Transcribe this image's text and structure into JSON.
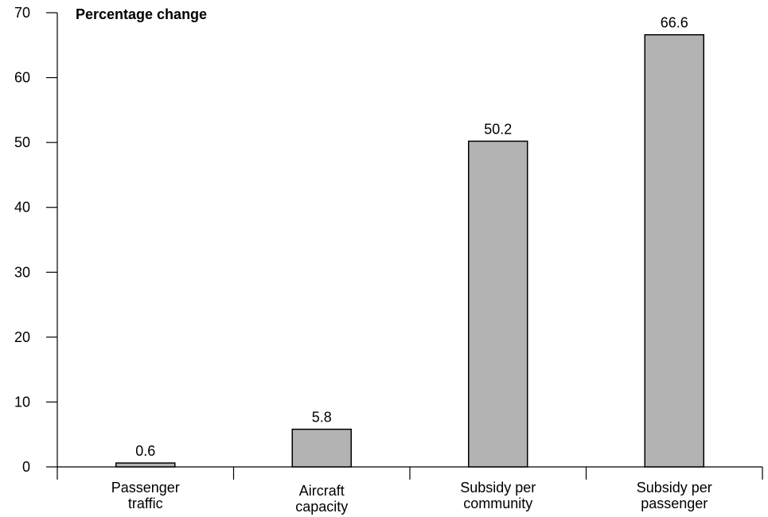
{
  "chart_data": {
    "type": "bar",
    "ylabel": "Percentage change",
    "categories": [
      [
        "Passenger",
        "traffic"
      ],
      [
        "Aircraft",
        "capacity"
      ],
      [
        "Subsidy per",
        "community"
      ],
      [
        "Subsidy per",
        "passenger"
      ]
    ],
    "values": [
      0.6,
      5.8,
      50.2,
      66.6
    ],
    "data_labels": [
      "0.6",
      "5.8",
      "50.2",
      "66.6"
    ],
    "ylim": [
      0,
      70
    ],
    "yticks": [
      0,
      10,
      20,
      30,
      40,
      50,
      60,
      70
    ],
    "grid": false,
    "bar_color": "#b3b3b3"
  }
}
